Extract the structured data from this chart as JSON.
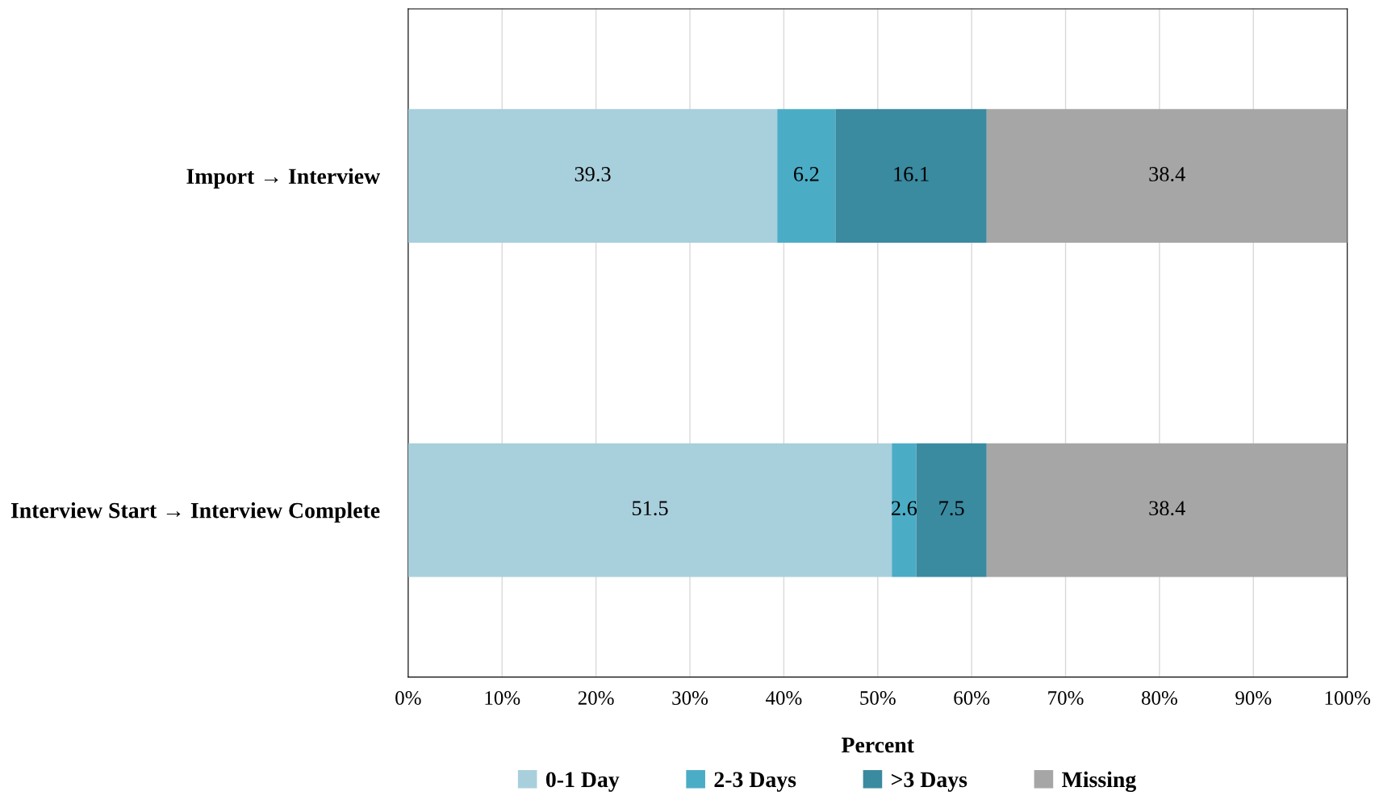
{
  "chart_data": {
    "type": "bar",
    "orientation": "horizontal",
    "stacked": true,
    "xlabel": "Percent",
    "categories": [
      "Import → Interview",
      "Interview Start → Interview Complete"
    ],
    "series": [
      {
        "name": "0-1 Day",
        "color": "#a8cfdc",
        "values": [
          39.3,
          51.5
        ]
      },
      {
        "name": "2-3 Days",
        "color": "#4bacc6",
        "values": [
          6.2,
          2.6
        ]
      },
      {
        "name": ">3 Days",
        "color": "#3a8aa0",
        "values": [
          16.1,
          7.5
        ]
      },
      {
        "name": "Missing",
        "color": "#a6a6a6",
        "values": [
          38.4,
          38.4
        ]
      }
    ],
    "xlim": [
      0,
      100
    ],
    "xticks": [
      {
        "value": 0,
        "label": "0%"
      },
      {
        "value": 10,
        "label": "10%"
      },
      {
        "value": 20,
        "label": "20%"
      },
      {
        "value": 30,
        "label": "30%"
      },
      {
        "value": 40,
        "label": "40%"
      },
      {
        "value": 50,
        "label": "50%"
      },
      {
        "value": 60,
        "label": "60%"
      },
      {
        "value": 70,
        "label": "70%"
      },
      {
        "value": 80,
        "label": "80%"
      },
      {
        "value": 90,
        "label": "90%"
      },
      {
        "value": 100,
        "label": "100%"
      }
    ],
    "grid": "x",
    "data_labels": true,
    "legend": "bottom"
  }
}
